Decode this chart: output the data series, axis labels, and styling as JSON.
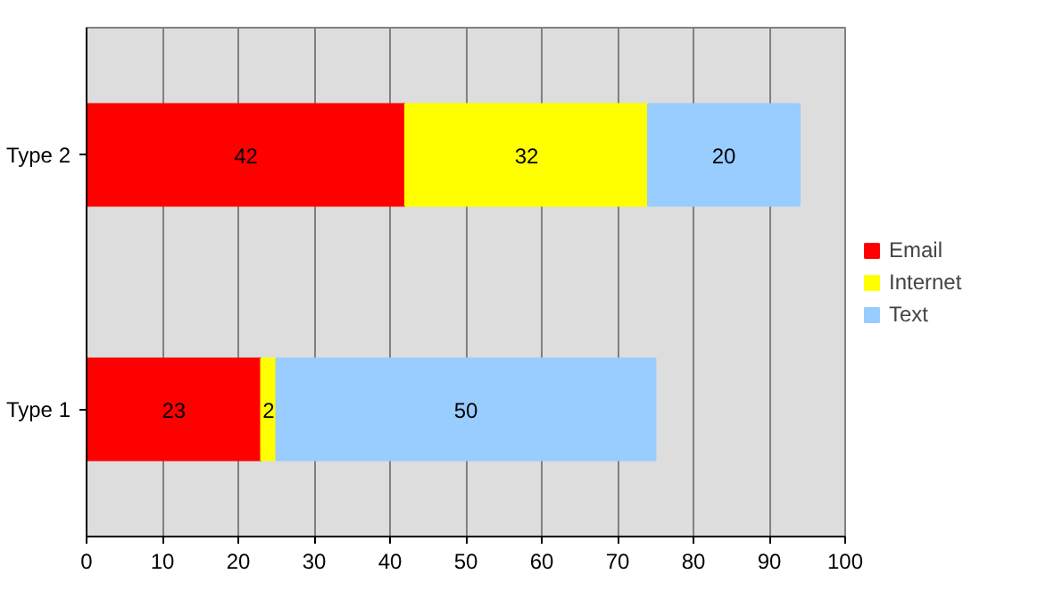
{
  "chart_data": {
    "type": "bar",
    "orientation": "horizontal",
    "stacked": true,
    "categories": [
      "Type 2",
      "Type 1"
    ],
    "series": [
      {
        "name": "Email",
        "color": "#ff0000",
        "values": [
          42,
          23
        ]
      },
      {
        "name": "Internet",
        "color": "#ffff00",
        "values": [
          32,
          2
        ]
      },
      {
        "name": "Text",
        "color": "#99ccff",
        "values": [
          20,
          50
        ]
      }
    ],
    "xlim": [
      0,
      100
    ],
    "xticks": [
      0,
      10,
      20,
      30,
      40,
      50,
      60,
      70,
      80,
      90,
      100
    ],
    "grid": "x",
    "legend": "right",
    "data_labels": true
  }
}
